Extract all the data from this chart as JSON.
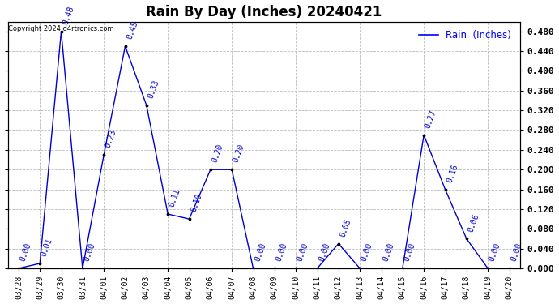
{
  "title": "Rain By Day (Inches) 20240421",
  "copyright_text": "Copyright 2024 d4rtronics.com",
  "dates": [
    "03/28",
    "03/29",
    "03/30",
    "03/31",
    "04/01",
    "04/02",
    "04/03",
    "04/04",
    "04/05",
    "04/06",
    "04/07",
    "04/08",
    "04/09",
    "04/10",
    "04/11",
    "04/12",
    "04/13",
    "04/14",
    "04/15",
    "04/16",
    "04/17",
    "04/18",
    "04/19",
    "04/20"
  ],
  "values": [
    0.0,
    0.01,
    0.48,
    0.0,
    0.23,
    0.45,
    0.33,
    0.11,
    0.1,
    0.2,
    0.2,
    0.0,
    0.0,
    0.0,
    0.0,
    0.05,
    0.0,
    0.0,
    0.0,
    0.27,
    0.16,
    0.06,
    0.0,
    0.0
  ],
  "line_color": "#0000cc",
  "label_color": "#0000cc",
  "label_fontsize": 7,
  "title_fontsize": 12,
  "ylim_min": 0.0,
  "ylim_max": 0.5,
  "yticks": [
    0.0,
    0.04,
    0.08,
    0.12,
    0.16,
    0.2,
    0.24,
    0.28,
    0.32,
    0.36,
    0.4,
    0.44,
    0.48
  ],
  "grid_color": "#bbbbbb",
  "bg_color": "#ffffff",
  "legend_label": "Rain  (Inches)",
  "legend_color": "#0000ff"
}
